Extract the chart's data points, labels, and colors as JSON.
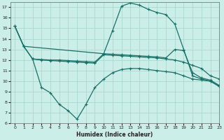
{
  "xlabel": "Humidex (Indice chaleur)",
  "bg_color": "#cceee8",
  "grid_color": "#aad8d0",
  "line_color": "#1a7068",
  "xlim": [
    -0.5,
    23
  ],
  "ylim": [
    6,
    17.5
  ],
  "yticks": [
    6,
    7,
    8,
    9,
    10,
    11,
    12,
    13,
    14,
    15,
    16,
    17
  ],
  "xticks": [
    0,
    1,
    2,
    3,
    4,
    5,
    6,
    7,
    8,
    9,
    10,
    11,
    12,
    13,
    14,
    15,
    16,
    17,
    18,
    19,
    20,
    21,
    22,
    23
  ],
  "line_peak_x": [
    0,
    1,
    10,
    11,
    12,
    13,
    14,
    15,
    16,
    17,
    18,
    19,
    20,
    21,
    22,
    23
  ],
  "line_peak_y": [
    15.2,
    13.3,
    12.6,
    14.8,
    17.1,
    17.4,
    17.2,
    16.8,
    16.5,
    16.3,
    15.4,
    13.0,
    10.5,
    10.2,
    10.0,
    9.5
  ],
  "line_upper_x": [
    0,
    1,
    2,
    3,
    4,
    5,
    6,
    7,
    8,
    9,
    10,
    11,
    12,
    13,
    14,
    15,
    16,
    17,
    18,
    19,
    20,
    21,
    22,
    23
  ],
  "line_upper_y": [
    15.2,
    13.3,
    12.1,
    12.05,
    12.0,
    12.0,
    11.95,
    11.9,
    11.85,
    11.8,
    12.6,
    12.55,
    12.5,
    12.45,
    12.4,
    12.35,
    12.3,
    12.2,
    13.0,
    12.9,
    10.8,
    10.3,
    10.1,
    9.6
  ],
  "line_mid_x": [
    0,
    1,
    2,
    3,
    4,
    5,
    6,
    7,
    8,
    9,
    10,
    11,
    12,
    13,
    14,
    15,
    16,
    17,
    18,
    19,
    20,
    21,
    22,
    23
  ],
  "line_mid_y": [
    15.2,
    13.3,
    12.1,
    12.0,
    11.95,
    11.9,
    11.85,
    11.8,
    11.75,
    11.7,
    12.5,
    12.45,
    12.4,
    12.35,
    12.3,
    12.25,
    12.2,
    12.1,
    12.0,
    11.8,
    11.5,
    11.2,
    10.5,
    10.2
  ],
  "line_lower_x": [
    2,
    3,
    4,
    5,
    6,
    7,
    8,
    9,
    10,
    11,
    12,
    13,
    14,
    15,
    16,
    17,
    18,
    19,
    20,
    21,
    22,
    23
  ],
  "line_lower_y": [
    12.1,
    9.4,
    8.9,
    7.8,
    7.2,
    6.4,
    7.8,
    9.4,
    10.2,
    10.8,
    11.1,
    11.2,
    11.2,
    11.1,
    11.0,
    10.9,
    10.8,
    10.5,
    10.2,
    10.1,
    10.0,
    9.5
  ]
}
